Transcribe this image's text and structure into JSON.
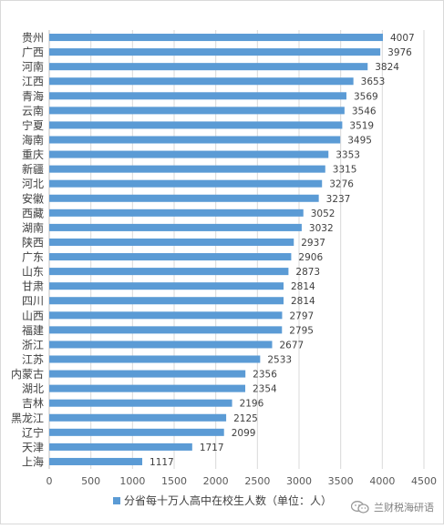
{
  "chart_data": {
    "type": "bar",
    "orientation": "horizontal",
    "categories": [
      "贵州",
      "广西",
      "河南",
      "江西",
      "青海",
      "云南",
      "宁夏",
      "海南",
      "重庆",
      "新疆",
      "河北",
      "安徽",
      "西藏",
      "湖南",
      "陕西",
      "广东",
      "山东",
      "甘肃",
      "四川",
      "山西",
      "福建",
      "浙江",
      "江苏",
      "内蒙古",
      "湖北",
      "吉林",
      "黑龙江",
      "辽宁",
      "天津",
      "上海"
    ],
    "series": [
      {
        "name": "分省每十万人高中在校生人数（单位：人）",
        "values": [
          4007,
          3976,
          3824,
          3653,
          3569,
          3546,
          3519,
          3495,
          3353,
          3315,
          3276,
          3237,
          3052,
          3032,
          2937,
          2906,
          2873,
          2814,
          2814,
          2797,
          2795,
          2677,
          2533,
          2356,
          2354,
          2196,
          2125,
          2099,
          1717,
          1117
        ],
        "color": "#5b9bd5"
      }
    ],
    "xlim": [
      0,
      4500
    ],
    "xticks": [
      0,
      500,
      1000,
      1500,
      2000,
      2500,
      3000,
      3500,
      4000,
      4500
    ],
    "grid": "vertical",
    "legend": "bottom"
  },
  "watermark": {
    "text": "兰财税海研语",
    "icon": "wechat-icon"
  }
}
